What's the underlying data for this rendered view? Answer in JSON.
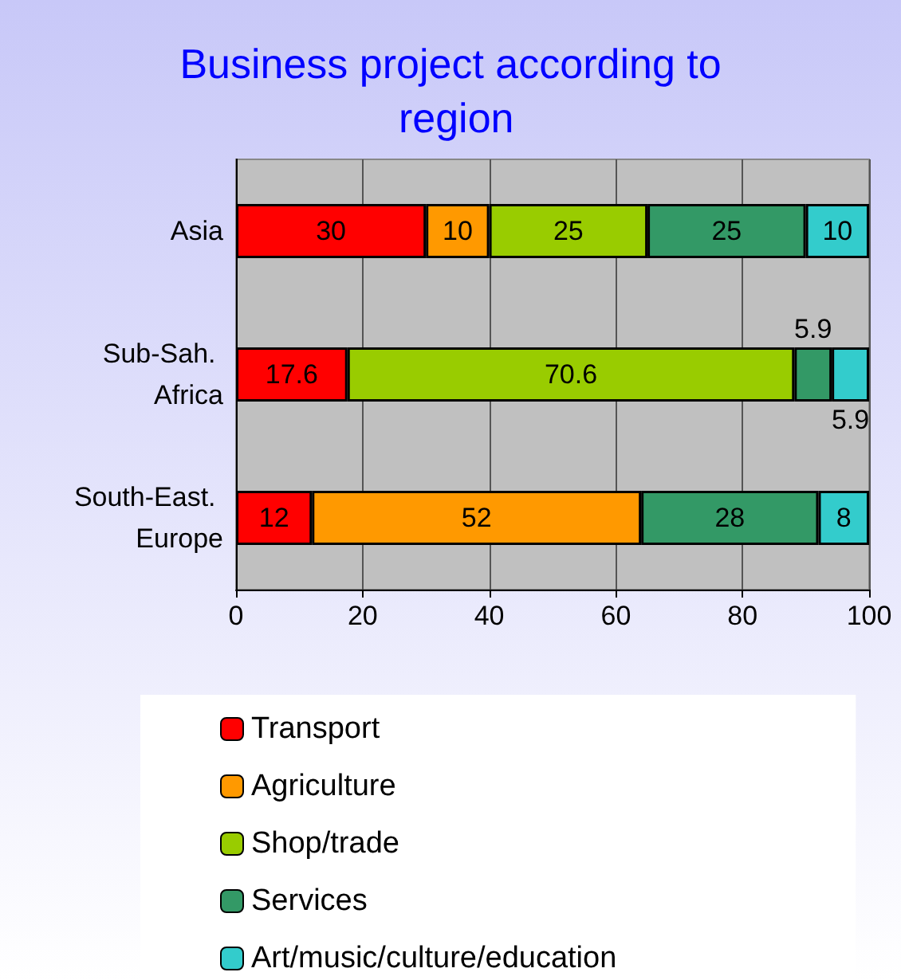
{
  "chart_data": {
    "type": "bar",
    "title": "Business project according to region",
    "orientation": "horizontal",
    "stacked": true,
    "categories": [
      "Asia",
      "Sub-Sah. Africa",
      "South-East. Europe"
    ],
    "series": [
      {
        "name": "Transport",
        "color": "#ff0000",
        "values": [
          30,
          17.6,
          12
        ]
      },
      {
        "name": "Agriculture",
        "color": "#ff9900",
        "values": [
          10,
          null,
          52
        ]
      },
      {
        "name": "Shop/trade",
        "color": "#99cc00",
        "values": [
          25,
          70.6,
          null
        ]
      },
      {
        "name": "Services",
        "color": "#339966",
        "values": [
          25,
          5.9,
          28
        ]
      },
      {
        "name": "Art/music/culture/education",
        "color": "#33cccc",
        "values": [
          10,
          5.9,
          8
        ]
      }
    ],
    "xlim": [
      0,
      100
    ],
    "xticks": [
      0,
      20,
      40,
      60,
      80,
      100
    ],
    "grid": "x",
    "legend": "bottom",
    "data_labels": true
  }
}
